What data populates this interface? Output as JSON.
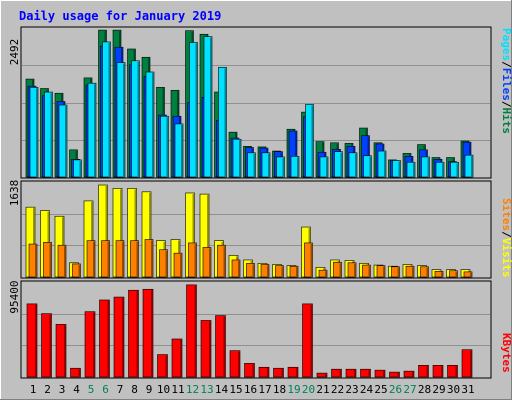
{
  "title": "Daily usage for January 2019",
  "colors": {
    "background": "#c0c0c0",
    "title": "#0000ff",
    "hits": "#008040",
    "files": "#0040ff",
    "pages": "#00e0ff",
    "visits": "#ffff00",
    "sites": "#ff8000",
    "kbytes": "#ff0000",
    "weekend_day": "#00805c",
    "weekday": "#000000"
  },
  "chart_data": [
    {
      "type": "bar",
      "panel": "hits-files-pages",
      "scale_label": "2492",
      "ylim": [
        0,
        2492
      ],
      "legend": [
        "Pages",
        "/",
        "Files",
        "/",
        "Hits"
      ],
      "categories": [
        "1",
        "2",
        "3",
        "4",
        "5",
        "6",
        "7",
        "8",
        "9",
        "10",
        "11",
        "12",
        "13",
        "14",
        "15",
        "16",
        "17",
        "18",
        "19",
        "20",
        "21",
        "22",
        "23",
        "24",
        "25",
        "26",
        "27",
        "28",
        "29",
        "30",
        "31"
      ],
      "series": [
        {
          "name": "Hits",
          "values": [
            1660,
            1500,
            1420,
            460,
            1680,
            2490,
            2490,
            2170,
            2030,
            1520,
            1470,
            2480,
            2420,
            1440,
            760,
            520,
            510,
            440,
            810,
            1100,
            600,
            580,
            570,
            830,
            580,
            290,
            400,
            550,
            330,
            330,
            610
          ]
        },
        {
          "name": "Files",
          "values": [
            1540,
            1380,
            1280,
            300,
            1560,
            2220,
            2200,
            1900,
            1700,
            1050,
            1030,
            1260,
            1350,
            960,
            660,
            500,
            490,
            430,
            780,
            1020,
            420,
            470,
            520,
            700,
            560,
            280,
            350,
            460,
            300,
            260,
            590
          ]
        },
        {
          "name": "Pages",
          "values": [
            1520,
            1440,
            1220,
            290,
            1590,
            2290,
            1940,
            1970,
            1780,
            1030,
            900,
            2280,
            2380,
            1860,
            640,
            410,
            410,
            340,
            350,
            1230,
            340,
            430,
            410,
            360,
            440,
            280,
            250,
            340,
            250,
            250,
            370
          ]
        }
      ]
    },
    {
      "type": "bar",
      "panel": "visits-sites",
      "scale_label": "1638",
      "ylim": [
        0,
        1638
      ],
      "legend": [
        "Sites",
        "/",
        "Visits"
      ],
      "categories": [
        "1",
        "2",
        "3",
        "4",
        "5",
        "6",
        "7",
        "8",
        "9",
        "10",
        "11",
        "12",
        "13",
        "14",
        "15",
        "16",
        "17",
        "18",
        "19",
        "20",
        "21",
        "22",
        "23",
        "24",
        "25",
        "26",
        "27",
        "28",
        "29",
        "30",
        "31"
      ],
      "series": [
        {
          "name": "Visits",
          "values": [
            1230,
            1170,
            1070,
            250,
            1340,
            1620,
            1560,
            1560,
            1500,
            640,
            660,
            1480,
            1460,
            640,
            380,
            300,
            240,
            220,
            200,
            880,
            170,
            300,
            290,
            240,
            210,
            190,
            220,
            200,
            130,
            130,
            130
          ]
        },
        {
          "name": "Sites",
          "values": [
            580,
            610,
            560,
            230,
            640,
            640,
            640,
            640,
            660,
            480,
            420,
            600,
            520,
            560,
            300,
            240,
            220,
            200,
            190,
            600,
            120,
            260,
            250,
            210,
            200,
            180,
            190,
            180,
            100,
            110,
            90
          ]
        }
      ]
    },
    {
      "type": "bar",
      "panel": "kbytes",
      "scale_label": "95400",
      "ylim": [
        0,
        95400
      ],
      "legend": [
        "KBytes"
      ],
      "categories": [
        "1",
        "2",
        "3",
        "4",
        "5",
        "6",
        "7",
        "8",
        "9",
        "10",
        "11",
        "12",
        "13",
        "14",
        "15",
        "16",
        "17",
        "18",
        "19",
        "20",
        "21",
        "22",
        "23",
        "24",
        "25",
        "26",
        "27",
        "28",
        "29",
        "30",
        "31"
      ],
      "series": [
        {
          "name": "KBytes",
          "values": [
            75000,
            65000,
            54000,
            9000,
            67000,
            79000,
            82000,
            89000,
            90000,
            23000,
            39000,
            94500,
            58000,
            63000,
            27000,
            14000,
            10000,
            9000,
            10000,
            75000,
            4000,
            8000,
            8000,
            8000,
            7000,
            5000,
            6000,
            12000,
            12000,
            12000,
            28000
          ]
        }
      ]
    }
  ]
}
